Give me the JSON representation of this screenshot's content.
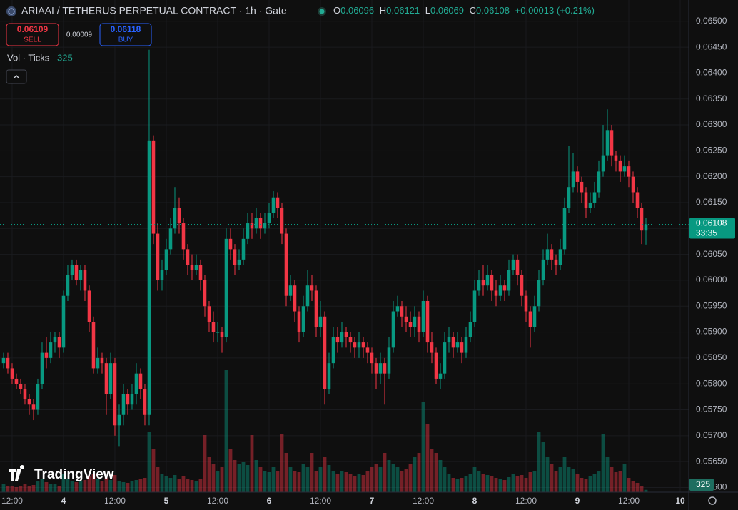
{
  "chart_data": {
    "type": "candlestick",
    "title": "ARIAAI / TETHERUS PERPETUAL CONTRACT · 1h · Gate",
    "ohlc_labels": [
      "O",
      "H",
      "L",
      "C"
    ],
    "change": "+0.00013 (+0.21%)",
    "quote": {
      "sell_price": "0.06109",
      "sell": "SELL",
      "spread": "0.00009",
      "buy_price": "0.06118",
      "buy": "BUY"
    },
    "volume_label": "Vol · Ticks",
    "countdown": "33:35",
    "logo": "TradingView",
    "up_color": "#089981",
    "down_color": "#f23645",
    "grid": true,
    "open": [
      0.0584,
      0.0585,
      0.0583,
      0.0581,
      0.058,
      0.0579,
      0.0577,
      0.0576,
      0.0575,
      0.058,
      0.0586,
      0.0585,
      0.0588,
      0.0589,
      0.0587,
      0.0597,
      0.0601,
      0.0603,
      0.06,
      0.0602,
      0.0598,
      0.0592,
      0.0583,
      0.0585,
      0.0584,
      0.0578,
      0.0584,
      0.0572,
      0.0574,
      0.0578,
      0.0576,
      0.0578,
      0.0582,
      0.0579,
      0.0574,
      0.0627,
      0.0609,
      0.06,
      0.0602,
      0.0606,
      0.061,
      0.0614,
      0.0611,
      0.0606,
      0.0603,
      0.0602,
      0.0603,
      0.06,
      0.0595,
      0.0592,
      0.059,
      0.059,
      0.0589,
      0.0608,
      0.0606,
      0.0603,
      0.0604,
      0.0608,
      0.0611,
      0.061,
      0.0612,
      0.061,
      0.0611,
      0.0613,
      0.0616,
      0.0614,
      0.0609,
      0.0597,
      0.0599,
      0.0594,
      0.059,
      0.0595,
      0.0599,
      0.0598,
      0.0591,
      0.0593,
      0.0579,
      0.0584,
      0.0589,
      0.0588,
      0.059,
      0.0589,
      0.0588,
      0.0587,
      0.0588,
      0.0587,
      0.0586,
      0.0584,
      0.0582,
      0.0584,
      0.0582,
      0.0587,
      0.0594,
      0.0595,
      0.0593,
      0.0592,
      0.0591,
      0.0593,
      0.059,
      0.0596,
      0.0588,
      0.0586,
      0.0581,
      0.0582,
      0.0588,
      0.0589,
      0.0587,
      0.0588,
      0.0586,
      0.0589,
      0.0592,
      0.0598,
      0.06,
      0.0599,
      0.0601,
      0.0598,
      0.0597,
      0.0599,
      0.0598,
      0.0602,
      0.0604,
      0.0601,
      0.0597,
      0.0594,
      0.0591,
      0.0595,
      0.06,
      0.0604,
      0.0606,
      0.0604,
      0.0603,
      0.0606,
      0.0614,
      0.0618,
      0.0621,
      0.0619,
      0.0617,
      0.0614,
      0.0615,
      0.0617,
      0.0621,
      0.0624,
      0.0629,
      0.0624,
      0.0623,
      0.0621,
      0.0622,
      0.062,
      0.0617,
      0.0614,
      0.06096
    ],
    "high": [
      0.0586,
      0.0586,
      0.0584,
      0.0582,
      0.0581,
      0.058,
      0.0578,
      0.0577,
      0.0581,
      0.0588,
      0.0589,
      0.059,
      0.059,
      0.059,
      0.0598,
      0.0603,
      0.0604,
      0.0604,
      0.0603,
      0.0603,
      0.0599,
      0.0593,
      0.0587,
      0.0586,
      0.0585,
      0.0586,
      0.0585,
      0.0576,
      0.058,
      0.0579,
      0.058,
      0.0584,
      0.0583,
      0.058,
      0.06445,
      0.0628,
      0.0611,
      0.0604,
      0.0608,
      0.0612,
      0.0618,
      0.0616,
      0.0612,
      0.0607,
      0.0605,
      0.0605,
      0.0604,
      0.0601,
      0.0596,
      0.0594,
      0.0592,
      0.0591,
      0.061,
      0.061,
      0.0607,
      0.0606,
      0.061,
      0.0613,
      0.0613,
      0.0614,
      0.0613,
      0.0613,
      0.0615,
      0.06172,
      0.0617,
      0.0615,
      0.061,
      0.0601,
      0.06,
      0.0595,
      0.0597,
      0.0602,
      0.0601,
      0.0599,
      0.0596,
      0.0594,
      0.0586,
      0.0591,
      0.0591,
      0.0592,
      0.0591,
      0.059,
      0.0589,
      0.059,
      0.0589,
      0.0588,
      0.0587,
      0.0585,
      0.0586,
      0.0585,
      0.0589,
      0.0596,
      0.0597,
      0.0596,
      0.0595,
      0.0594,
      0.0595,
      0.0594,
      0.0598,
      0.0597,
      0.059,
      0.0587,
      0.0584,
      0.059,
      0.0591,
      0.059,
      0.059,
      0.0589,
      0.0591,
      0.0594,
      0.06,
      0.0602,
      0.0603,
      0.0603,
      0.0602,
      0.06,
      0.0601,
      0.06,
      0.0604,
      0.0605,
      0.0605,
      0.0602,
      0.0598,
      0.0595,
      0.0597,
      0.0602,
      0.0606,
      0.0609,
      0.0607,
      0.0605,
      0.0608,
      0.0616,
      0.0626,
      0.06245,
      0.0622,
      0.062,
      0.0618,
      0.0617,
      0.0619,
      0.0623,
      0.063,
      0.0633,
      0.063,
      0.0625,
      0.0624,
      0.0624,
      0.0623,
      0.0621,
      0.0618,
      0.0615,
      0.06121
    ],
    "low": [
      0.0583,
      0.0582,
      0.058,
      0.0579,
      0.0578,
      0.0576,
      0.0574,
      0.0573,
      0.0574,
      0.0579,
      0.0583,
      0.0584,
      0.0586,
      0.0585,
      0.0586,
      0.0596,
      0.06,
      0.0599,
      0.0598,
      0.0596,
      0.059,
      0.0582,
      0.0582,
      0.0582,
      0.0574,
      0.0577,
      0.057,
      0.0568,
      0.0572,
      0.0574,
      0.0575,
      0.0576,
      0.0577,
      0.0572,
      0.0572,
      0.0607,
      0.0598,
      0.0598,
      0.0601,
      0.0605,
      0.0609,
      0.0609,
      0.0604,
      0.0601,
      0.06,
      0.0601,
      0.0598,
      0.0593,
      0.059,
      0.0588,
      0.0588,
      0.0586,
      0.0588,
      0.0604,
      0.0601,
      0.0602,
      0.0603,
      0.0607,
      0.0608,
      0.0609,
      0.0608,
      0.0609,
      0.061,
      0.0612,
      0.0612,
      0.0607,
      0.0595,
      0.0596,
      0.0592,
      0.0588,
      0.0589,
      0.0594,
      0.0596,
      0.0589,
      0.0589,
      0.0576,
      0.0578,
      0.0583,
      0.0586,
      0.0587,
      0.0587,
      0.0586,
      0.0585,
      0.0585,
      0.0585,
      0.0584,
      0.0582,
      0.0579,
      0.058,
      0.0576,
      0.0581,
      0.0586,
      0.0593,
      0.0591,
      0.059,
      0.0589,
      0.0589,
      0.0588,
      0.0589,
      0.0586,
      0.0584,
      0.058,
      0.0579,
      0.0581,
      0.0586,
      0.0585,
      0.0586,
      0.0584,
      0.0585,
      0.0588,
      0.0591,
      0.0597,
      0.0597,
      0.0598,
      0.0596,
      0.0595,
      0.0596,
      0.0596,
      0.0597,
      0.0601,
      0.0599,
      0.0595,
      0.0592,
      0.0587,
      0.059,
      0.0594,
      0.0599,
      0.0603,
      0.0602,
      0.0601,
      0.0602,
      0.0605,
      0.0613,
      0.0617,
      0.0617,
      0.0615,
      0.0612,
      0.0613,
      0.0614,
      0.0616,
      0.062,
      0.0623,
      0.0622,
      0.0621,
      0.0619,
      0.062,
      0.0618,
      0.0615,
      0.0612,
      0.0607,
      0.06069
    ],
    "close": [
      0.0585,
      0.0583,
      0.0581,
      0.058,
      0.0579,
      0.0577,
      0.0576,
      0.0575,
      0.058,
      0.0586,
      0.0585,
      0.0588,
      0.0589,
      0.0587,
      0.0597,
      0.0601,
      0.0603,
      0.06,
      0.0602,
      0.0598,
      0.0592,
      0.0583,
      0.0585,
      0.0584,
      0.0578,
      0.0584,
      0.0572,
      0.0574,
      0.0578,
      0.0576,
      0.0578,
      0.0582,
      0.0579,
      0.0574,
      0.0627,
      0.0609,
      0.06,
      0.0602,
      0.0606,
      0.061,
      0.0614,
      0.0611,
      0.0606,
      0.0603,
      0.0602,
      0.0603,
      0.06,
      0.0595,
      0.0592,
      0.059,
      0.059,
      0.0589,
      0.0608,
      0.0606,
      0.0603,
      0.0604,
      0.0608,
      0.0611,
      0.061,
      0.0612,
      0.061,
      0.0611,
      0.0613,
      0.0616,
      0.0614,
      0.0609,
      0.0597,
      0.0599,
      0.0594,
      0.059,
      0.0595,
      0.0599,
      0.0598,
      0.0591,
      0.0593,
      0.0579,
      0.0584,
      0.0589,
      0.0588,
      0.059,
      0.0589,
      0.0588,
      0.0587,
      0.0588,
      0.0587,
      0.0586,
      0.0584,
      0.0582,
      0.0584,
      0.0582,
      0.0587,
      0.0594,
      0.0595,
      0.0593,
      0.0592,
      0.0591,
      0.0593,
      0.059,
      0.0596,
      0.0588,
      0.0586,
      0.0581,
      0.0582,
      0.0588,
      0.0589,
      0.0587,
      0.0588,
      0.0586,
      0.0589,
      0.0592,
      0.0598,
      0.06,
      0.0599,
      0.0601,
      0.0598,
      0.0597,
      0.0599,
      0.0598,
      0.0602,
      0.0604,
      0.0601,
      0.0597,
      0.0594,
      0.0591,
      0.0595,
      0.06,
      0.0604,
      0.0606,
      0.0604,
      0.0603,
      0.0606,
      0.0614,
      0.0618,
      0.0621,
      0.0619,
      0.0617,
      0.0614,
      0.0615,
      0.0617,
      0.0621,
      0.0624,
      0.0629,
      0.0624,
      0.0623,
      0.0621,
      0.0622,
      0.062,
      0.0617,
      0.0614,
      0.06096,
      0.06108
    ],
    "volume": [
      1200,
      900,
      800,
      700,
      900,
      1100,
      800,
      1000,
      1500,
      1800,
      1400,
      1200,
      1100,
      900,
      2500,
      1800,
      1600,
      1400,
      1500,
      1700,
      2200,
      2600,
      1800,
      1500,
      2000,
      1700,
      2400,
      1600,
      1400,
      1300,
      1500,
      1700,
      1900,
      2000,
      8500,
      6000,
      3500,
      2500,
      2200,
      2000,
      2400,
      1900,
      2200,
      1800,
      1700,
      1500,
      1800,
      8000,
      5000,
      4000,
      3000,
      3500,
      17100,
      6000,
      4500,
      4000,
      4200,
      3800,
      8000,
      4500,
      3500,
      3000,
      2800,
      3500,
      3000,
      8200,
      5500,
      3500,
      3000,
      2800,
      4000,
      3500,
      5500,
      3000,
      3500,
      5000,
      3800,
      3000,
      2500,
      3000,
      2800,
      2500,
      2200,
      2600,
      2400,
      3000,
      3500,
      4000,
      3500,
      5500,
      4500,
      4000,
      3500,
      3000,
      3300,
      4000,
      5000,
      5500,
      12600,
      9500,
      6000,
      5500,
      4500,
      3500,
      2500,
      2000,
      1800,
      2000,
      2300,
      2500,
      3500,
      3000,
      2600,
      2400,
      2200,
      2000,
      1800,
      1700,
      2100,
      2500,
      2200,
      2400,
      2000,
      2800,
      3000,
      8500,
      7000,
      5000,
      4000,
      3000,
      3500,
      5000,
      3500,
      3200,
      2500,
      2000,
      1800,
      2200,
      2600,
      3000,
      8200,
      5000,
      3500,
      2800,
      3000,
      4000,
      2000,
      1500,
      1300,
      800,
      325
    ],
    "xlim": [
      -0.83,
      160
    ],
    "xticks": [
      {
        "value": 2,
        "label": "12:00"
      },
      {
        "value": 14,
        "label": "4"
      },
      {
        "value": 26,
        "label": "12:00"
      },
      {
        "value": 38,
        "label": "5"
      },
      {
        "value": 50,
        "label": "12:00"
      },
      {
        "value": 62,
        "label": "6"
      },
      {
        "value": 74,
        "label": "12:00"
      },
      {
        "value": 86,
        "label": "7"
      },
      {
        "value": 98,
        "label": "12:00"
      },
      {
        "value": 110,
        "label": "8"
      },
      {
        "value": 122,
        "label": "12:00"
      },
      {
        "value": 134,
        "label": "9"
      },
      {
        "value": 146,
        "label": "12:00"
      },
      {
        "value": 158,
        "label": "10"
      }
    ],
    "ylim": [
      0.05591,
      0.06541
    ],
    "yticks": [
      {
        "value": 0.065,
        "label": "0.06500"
      },
      {
        "value": 0.0645,
        "label": "0.06450"
      },
      {
        "value": 0.064,
        "label": "0.06400"
      },
      {
        "value": 0.0635,
        "label": "0.06350"
      },
      {
        "value": 0.063,
        "label": "0.06300"
      },
      {
        "value": 0.0625,
        "label": "0.06250"
      },
      {
        "value": 0.062,
        "label": "0.06200"
      },
      {
        "value": 0.0615,
        "label": "0.06150"
      },
      {
        "value": 0.061,
        "label": "0.06100"
      },
      {
        "value": 0.0605,
        "label": "0.06050"
      },
      {
        "value": 0.06,
        "label": "0.06000"
      },
      {
        "value": 0.0595,
        "label": "0.05950"
      },
      {
        "value": 0.059,
        "label": "0.05900"
      },
      {
        "value": 0.0585,
        "label": "0.05850"
      },
      {
        "value": 0.058,
        "label": "0.05800"
      },
      {
        "value": 0.0575,
        "label": "0.05750"
      },
      {
        "value": 0.057,
        "label": "0.05700"
      },
      {
        "value": 0.0565,
        "label": "0.05650"
      },
      {
        "value": 0.056,
        "label": "0.05600"
      }
    ]
  }
}
